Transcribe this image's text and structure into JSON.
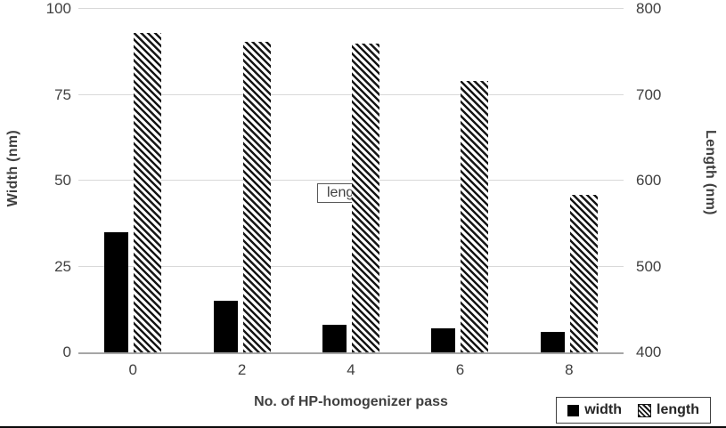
{
  "chart_data": {
    "type": "bar",
    "categories": [
      "0",
      "2",
      "4",
      "6",
      "8"
    ],
    "series": [
      {
        "name": "width",
        "axis": "left",
        "style": "solid",
        "color": "#000000",
        "values": [
          35,
          15,
          8,
          7,
          6
        ]
      },
      {
        "name": "length",
        "axis": "right",
        "style": "hatched",
        "color": "#161616",
        "values": [
          772,
          762,
          760,
          716,
          583
        ]
      }
    ],
    "left_axis": {
      "label": "Width (nm)",
      "min": 0,
      "max": 100,
      "ticks": [
        0,
        25,
        50,
        75,
        100
      ]
    },
    "right_axis": {
      "label": "Length (nm)",
      "min": 400,
      "max": 800,
      "ticks": [
        400,
        500,
        600,
        700,
        800
      ]
    },
    "xlabel": "No. of HP-homogenizer pass",
    "annotation": "length",
    "legend": [
      "width",
      "length"
    ],
    "grid": true,
    "legend_position": "bottom-right"
  }
}
